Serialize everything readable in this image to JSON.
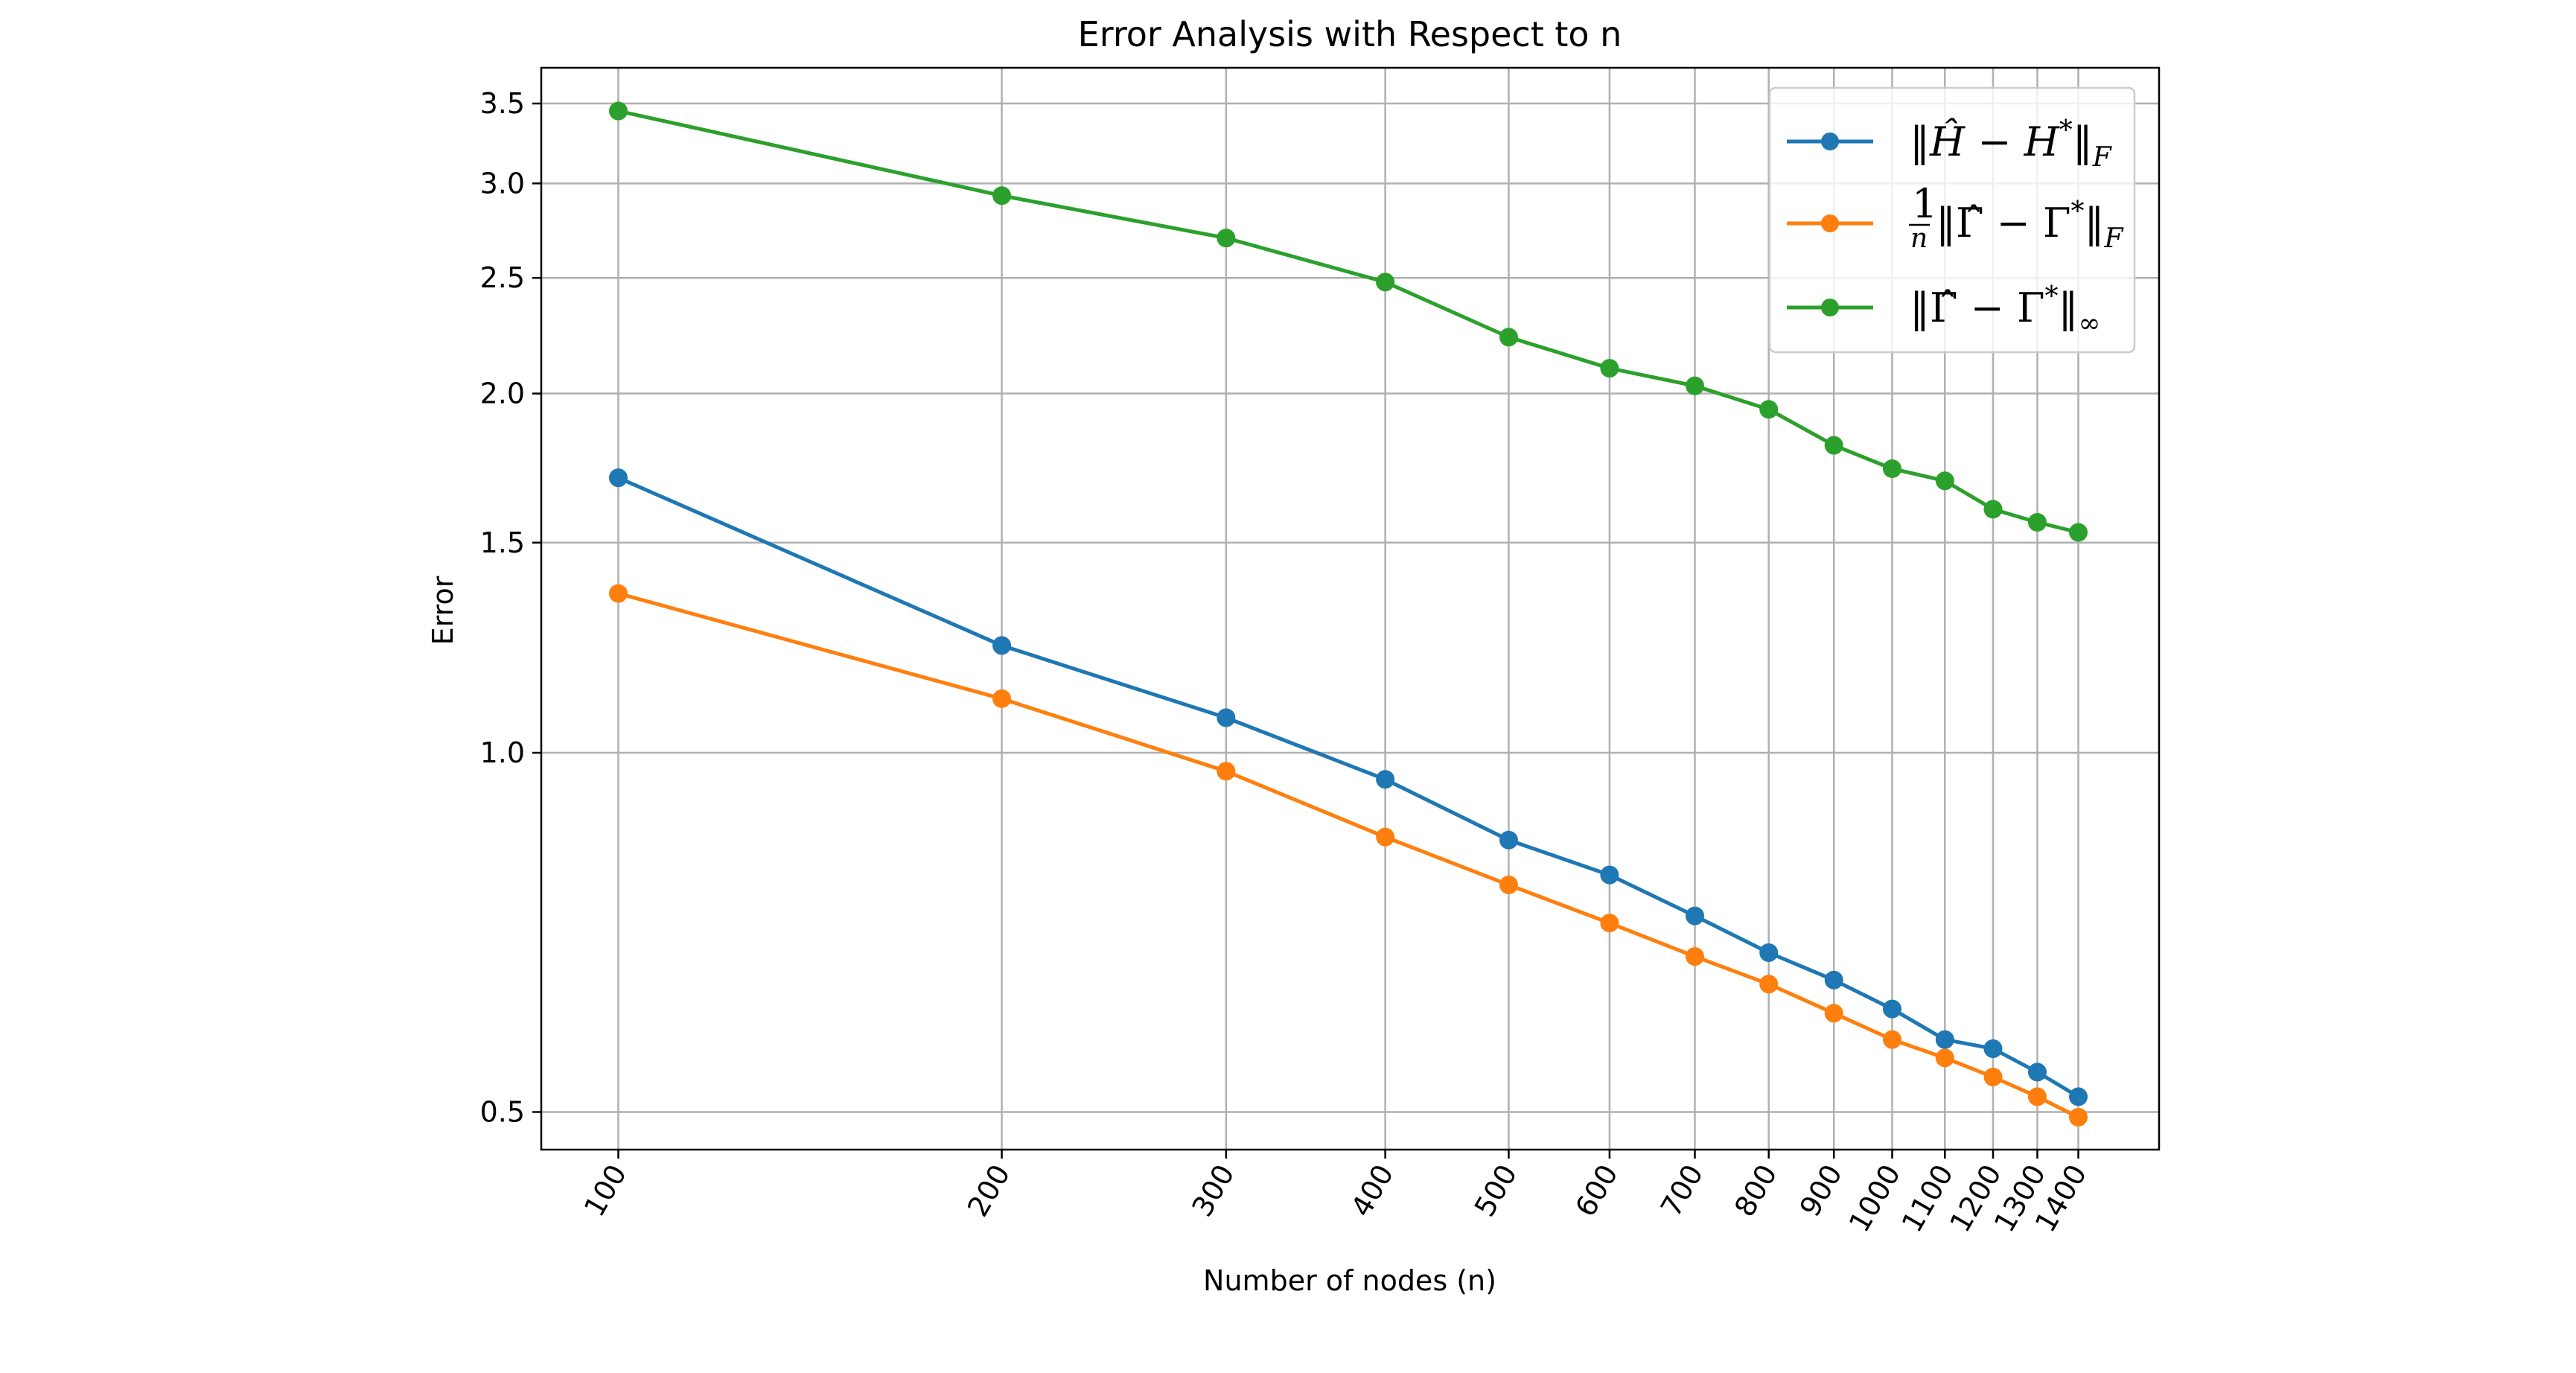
{
  "chart_data": {
    "type": "line",
    "title": "Error Analysis with Respect to n",
    "xlabel": "Number of nodes (n)",
    "ylabel": "Error",
    "x_scale": "log",
    "y_scale": "log",
    "x": [
      100,
      200,
      300,
      400,
      500,
      600,
      700,
      800,
      900,
      1000,
      1100,
      1200,
      1300,
      1400
    ],
    "x_tick_labels": [
      "100",
      "200",
      "300",
      "400",
      "500",
      "600",
      "700",
      "800",
      "900",
      "1000",
      "1100",
      "1200",
      "1300",
      "1400"
    ],
    "y_ticks": [
      0.5,
      1.0,
      1.5,
      2.0,
      2.5,
      3.0,
      3.5
    ],
    "y_tick_labels": [
      "0.5",
      "1.0",
      "1.5",
      "2.0",
      "2.5",
      "3.0",
      "3.5"
    ],
    "xlim": [
      87,
      1620
    ],
    "ylim": [
      0.465,
      3.75
    ],
    "grid": true,
    "legend_position": "top-right",
    "series": [
      {
        "name": "‖Ĥ − H*‖F",
        "color": "#1f77b4",
        "values": [
          1.7,
          1.23,
          1.07,
          0.95,
          0.845,
          0.79,
          0.73,
          0.68,
          0.645,
          0.61,
          0.575,
          0.565,
          0.54,
          0.515
        ]
      },
      {
        "name": "1/n ‖Γ̂ − Γ*‖F",
        "color": "#ff7f0e",
        "values": [
          1.36,
          1.11,
          0.965,
          0.85,
          0.775,
          0.72,
          0.675,
          0.64,
          0.605,
          0.575,
          0.555,
          0.535,
          0.515,
          0.495
        ]
      },
      {
        "name": "‖Γ̂ − Γ*‖∞",
        "color": "#2ca02c",
        "values": [
          3.45,
          2.93,
          2.7,
          2.48,
          2.23,
          2.1,
          2.03,
          1.94,
          1.81,
          1.73,
          1.69,
          1.6,
          1.56,
          1.53
        ]
      }
    ]
  }
}
